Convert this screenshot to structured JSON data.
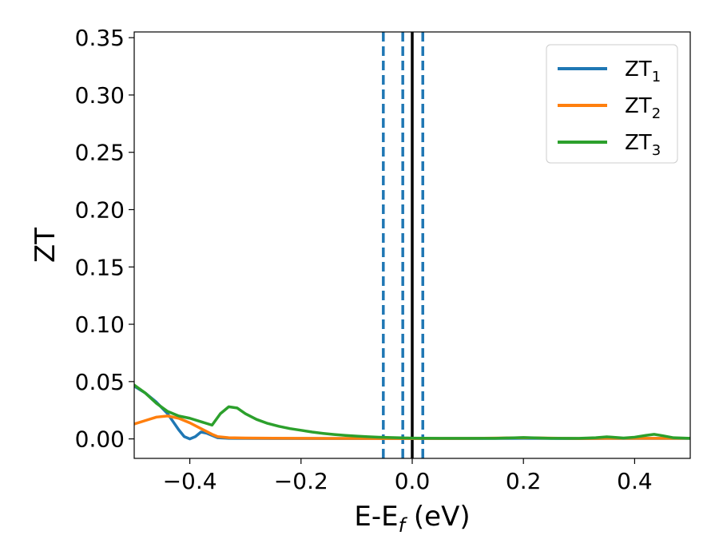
{
  "chart_data": {
    "type": "line",
    "xlabel": "E-E",
    "xlabel_sub": "f",
    "xlabel_unit": "(eV)",
    "ylabel": "ZT",
    "xlim": [
      -0.5,
      0.5
    ],
    "ylim": [
      -0.017,
      0.355
    ],
    "xticks": [
      -0.4,
      -0.2,
      0.0,
      0.2,
      0.4
    ],
    "xtick_labels": [
      "−0.4",
      "−0.2",
      "0.0",
      "0.2",
      "0.4"
    ],
    "yticks": [
      0.0,
      0.05,
      0.1,
      0.15,
      0.2,
      0.25,
      0.3,
      0.35
    ],
    "ytick_labels": [
      "0.00",
      "0.05",
      "0.10",
      "0.15",
      "0.20",
      "0.25",
      "0.30",
      "0.35"
    ],
    "grid": false,
    "legend_position": "top-right",
    "vlines": [
      {
        "x": 0.0,
        "style": "solid",
        "color": "#000000"
      },
      {
        "x": -0.052,
        "style": "dashed",
        "color": "#1f77b4"
      },
      {
        "x": -0.017,
        "style": "dashed",
        "color": "#1f77b4"
      },
      {
        "x": 0.019,
        "style": "dashed",
        "color": "#1f77b4"
      }
    ],
    "series": [
      {
        "name": "ZT",
        "name_sub": "1",
        "color": "#1f77b4",
        "x": [
          -0.5,
          -0.48,
          -0.46,
          -0.44,
          -0.43,
          -0.42,
          -0.41,
          -0.4,
          -0.39,
          -0.38,
          -0.37,
          -0.36,
          -0.35,
          -0.33,
          -0.3,
          -0.25,
          -0.2,
          -0.15,
          -0.1,
          -0.05,
          0.0,
          0.1,
          0.2,
          0.3,
          0.35,
          0.4,
          0.43,
          0.45,
          0.48,
          0.5
        ],
        "y": [
          0.046,
          0.04,
          0.032,
          0.022,
          0.015,
          0.008,
          0.002,
          0.0,
          0.002,
          0.006,
          0.005,
          0.003,
          0.001,
          0.0005,
          0.0004,
          0.0003,
          0.0003,
          0.0003,
          0.0003,
          0.0003,
          0.0003,
          0.0003,
          0.0005,
          0.0002,
          0.0004,
          0.0004,
          0.0004,
          0.0004,
          0.0004,
          0.0004
        ]
      },
      {
        "name": "ZT",
        "name_sub": "2",
        "color": "#ff7f0e",
        "x": [
          -0.5,
          -0.48,
          -0.46,
          -0.44,
          -0.42,
          -0.4,
          -0.38,
          -0.36,
          -0.35,
          -0.33,
          -0.3,
          -0.25,
          -0.2,
          -0.15,
          -0.1,
          -0.05,
          0.0,
          0.1,
          0.2,
          0.3,
          0.35,
          0.4,
          0.43,
          0.45,
          0.48,
          0.5
        ],
        "y": [
          0.013,
          0.016,
          0.019,
          0.02,
          0.018,
          0.014,
          0.009,
          0.004,
          0.002,
          0.001,
          0.0008,
          0.0006,
          0.0005,
          0.0004,
          0.0004,
          0.0003,
          0.0003,
          0.0004,
          0.001,
          0.0003,
          0.0005,
          0.0005,
          0.0005,
          0.0005,
          0.0005,
          0.0005
        ]
      },
      {
        "name": "ZT",
        "name_sub": "3",
        "color": "#2ca02c",
        "x": [
          -0.5,
          -0.48,
          -0.46,
          -0.44,
          -0.42,
          -0.4,
          -0.38,
          -0.36,
          -0.345,
          -0.33,
          -0.315,
          -0.3,
          -0.28,
          -0.26,
          -0.24,
          -0.22,
          -0.2,
          -0.18,
          -0.16,
          -0.14,
          -0.12,
          -0.1,
          -0.08,
          -0.06,
          -0.04,
          -0.02,
          0.0,
          0.05,
          0.1,
          0.15,
          0.2,
          0.25,
          0.3,
          0.33,
          0.35,
          0.38,
          0.4,
          0.42,
          0.435,
          0.45,
          0.47,
          0.5
        ],
        "y": [
          0.047,
          0.04,
          0.031,
          0.024,
          0.02,
          0.018,
          0.015,
          0.012,
          0.022,
          0.028,
          0.027,
          0.022,
          0.017,
          0.0135,
          0.011,
          0.009,
          0.0075,
          0.006,
          0.0048,
          0.0038,
          0.003,
          0.0024,
          0.0019,
          0.0015,
          0.0012,
          0.0009,
          0.0007,
          0.0005,
          0.0005,
          0.0005,
          0.0012,
          0.0005,
          0.0005,
          0.001,
          0.0018,
          0.0008,
          0.0015,
          0.003,
          0.004,
          0.0028,
          0.001,
          0.0005
        ]
      }
    ]
  }
}
